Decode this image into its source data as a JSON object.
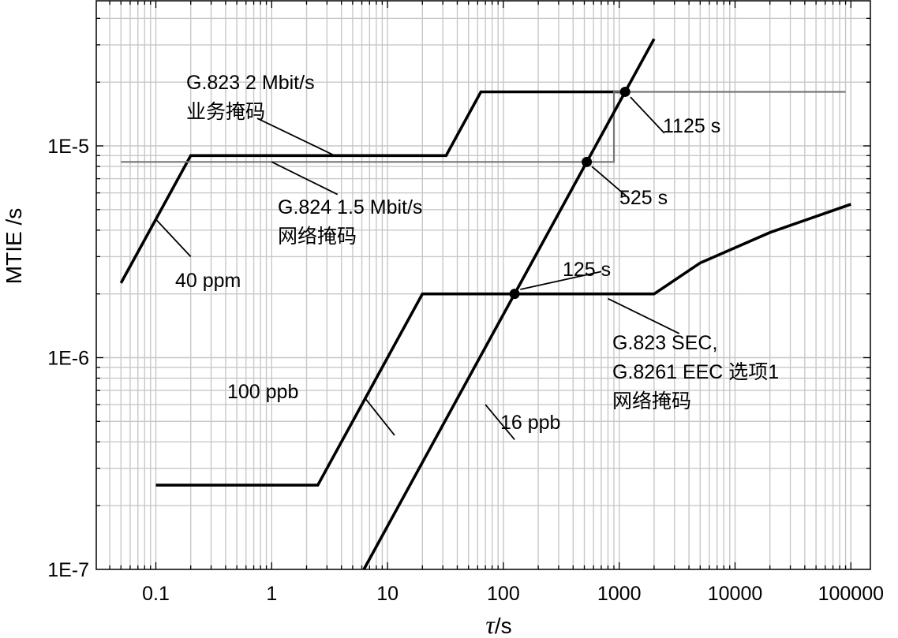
{
  "chart_data": {
    "type": "line",
    "xlabel_symbol": "τ",
    "xlabel_unit": "/s",
    "ylabel": "MTIE /s",
    "x_scale": "log",
    "y_scale": "log",
    "xlim": [
      0.03,
      150000
    ],
    "ylim": [
      1e-07,
      5e-05
    ],
    "grid": true,
    "x_ticks": [
      {
        "value": 0.1,
        "label": "0.1"
      },
      {
        "value": 1,
        "label": "1"
      },
      {
        "value": 10,
        "label": "10"
      },
      {
        "value": 100,
        "label": "100"
      },
      {
        "value": 1000,
        "label": "1000"
      },
      {
        "value": 10000,
        "label": "10000"
      },
      {
        "value": 100000,
        "label": "100000"
      }
    ],
    "y_ticks": [
      {
        "value": 1e-07,
        "label": "1E-7"
      },
      {
        "value": 1e-06,
        "label": "1E-6"
      },
      {
        "value": 1e-05,
        "label": "1E-5"
      }
    ],
    "series": [
      {
        "id": "g823-2m",
        "color": "#000000",
        "weight": "bold",
        "points": [
          [
            0.05,
            2.25e-06
          ],
          [
            0.2,
            9e-06
          ],
          [
            32,
            9e-06
          ],
          [
            64,
            1.8e-05
          ],
          [
            1125,
            1.8e-05
          ]
        ]
      },
      {
        "id": "g824-1.5m",
        "color": "#777777",
        "weight": "thin",
        "points": [
          [
            0.05,
            8.4e-06
          ],
          [
            900,
            8.4e-06
          ],
          [
            900,
            1.8e-05
          ],
          [
            90000,
            1.8e-05
          ]
        ]
      },
      {
        "id": "g823-sec",
        "color": "#000000",
        "weight": "bold",
        "points": [
          [
            0.1,
            2.5e-07
          ],
          [
            2.5,
            2.5e-07
          ],
          [
            20,
            2e-06
          ],
          [
            2000,
            2e-06
          ],
          [
            5000,
            2.8e-06
          ],
          [
            20000,
            3.9e-06
          ],
          [
            100000,
            5.3e-06
          ]
        ]
      },
      {
        "id": "slope-16ppb",
        "color": "#000000",
        "weight": "bold",
        "points": [
          [
            6.25,
            1e-07
          ],
          [
            2000,
            3.2e-05
          ]
        ]
      }
    ],
    "markers": [
      {
        "x": 125,
        "y": 2e-06
      },
      {
        "x": 525,
        "y": 8.4e-06
      },
      {
        "x": 1125,
        "y": 1.8e-05
      }
    ],
    "annotations": [
      {
        "lines": [
          "G.823 2 Mbit/s",
          "业务掩码"
        ],
        "leader": [
          [
            3.5,
            9e-06
          ],
          [
            0.75,
            1.35e-05
          ]
        ]
      },
      {
        "lines": [
          "G.824 1.5 Mbit/s",
          "网络掩码"
        ],
        "leader": [
          [
            1,
            8.4e-06
          ],
          [
            3.7,
            5.9e-06
          ]
        ]
      },
      {
        "lines": [
          "40 ppm"
        ],
        "leader": [
          [
            0.1,
            4.5e-06
          ],
          [
            0.2,
            3e-06
          ]
        ]
      },
      {
        "lines": [
          "125 s"
        ],
        "leader": [
          [
            140,
            2.1e-06
          ],
          [
            700,
            2.55e-06
          ]
        ]
      },
      {
        "lines": [
          "525 s"
        ],
        "leader": [
          [
            580,
            8e-06
          ],
          [
            1150,
            5.8e-06
          ]
        ]
      },
      {
        "lines": [
          "1125 s"
        ],
        "leader": [
          [
            1250,
            1.7e-05
          ],
          [
            2450,
            1.15e-05
          ]
        ]
      },
      {
        "lines": [
          "G.823 SEC,",
          "G.8261 EEC 选项1",
          "网络掩码"
        ],
        "leader": [
          [
            800,
            1.9e-06
          ],
          [
            3300,
            1.3e-06
          ]
        ]
      },
      {
        "lines": [
          "100 ppb"
        ],
        "leader": [
          [
            6.3,
            6.5e-07
          ],
          [
            11.5,
            4.3e-07
          ]
        ]
      },
      {
        "lines": [
          "16 ppb"
        ],
        "leader": [
          [
            70,
            6e-07
          ],
          [
            125,
            4.1e-07
          ]
        ]
      }
    ]
  }
}
